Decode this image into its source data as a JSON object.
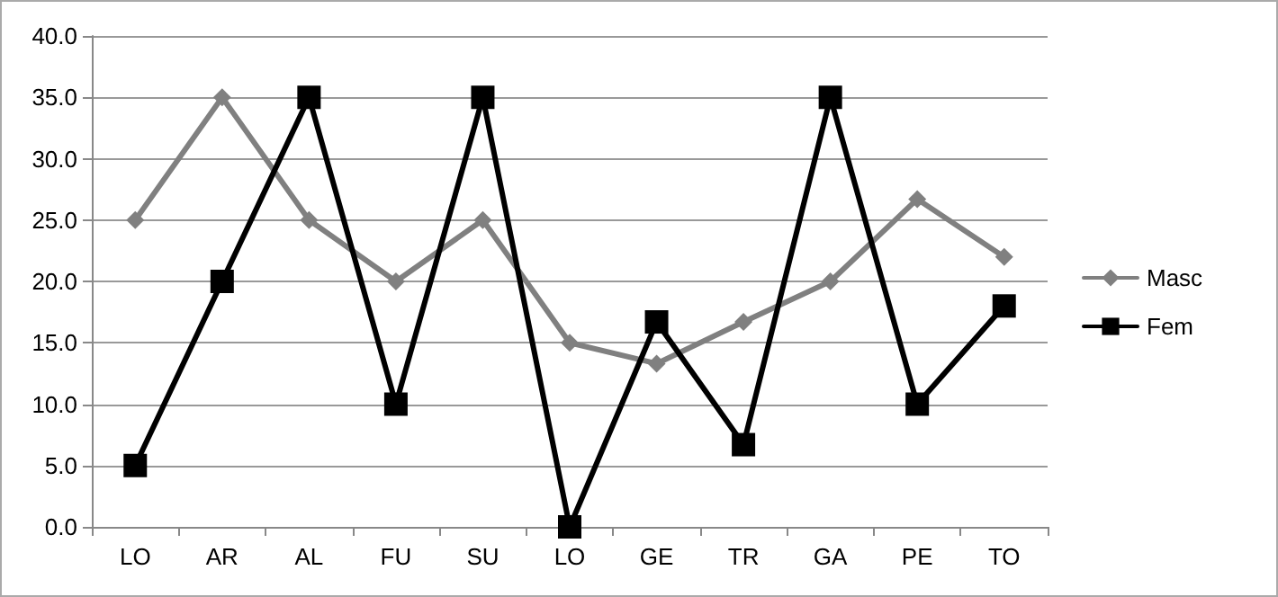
{
  "chart_data": {
    "type": "line",
    "categories": [
      "LO",
      "AR",
      "AL",
      "FU",
      "SU",
      "LO",
      "GE",
      "TR",
      "GA",
      "PE",
      "TO"
    ],
    "series": [
      {
        "name": "Masc",
        "color": "#808080",
        "marker": "diamond",
        "values": [
          25,
          35,
          25,
          20,
          25,
          15,
          13.3,
          16.7,
          20,
          26.7,
          22
        ]
      },
      {
        "name": "Fem",
        "color": "#000000",
        "marker": "square",
        "values": [
          5,
          20,
          35,
          10,
          35,
          0,
          16.7,
          6.7,
          35,
          10,
          18
        ]
      }
    ],
    "ylim": [
      0,
      40
    ],
    "yticks": [
      {
        "value": 0,
        "label": "0.0"
      },
      {
        "value": 5,
        "label": "5.0"
      },
      {
        "value": 10,
        "label": "10.0"
      },
      {
        "value": 15,
        "label": "15.0"
      },
      {
        "value": 20,
        "label": "20.0"
      },
      {
        "value": 25,
        "label": "25.0"
      },
      {
        "value": 30,
        "label": "30.0"
      },
      {
        "value": 35,
        "label": "35.0"
      },
      {
        "value": 40,
        "label": "40.0"
      }
    ],
    "grid": "y",
    "legend": "right",
    "line_style": "solid"
  }
}
